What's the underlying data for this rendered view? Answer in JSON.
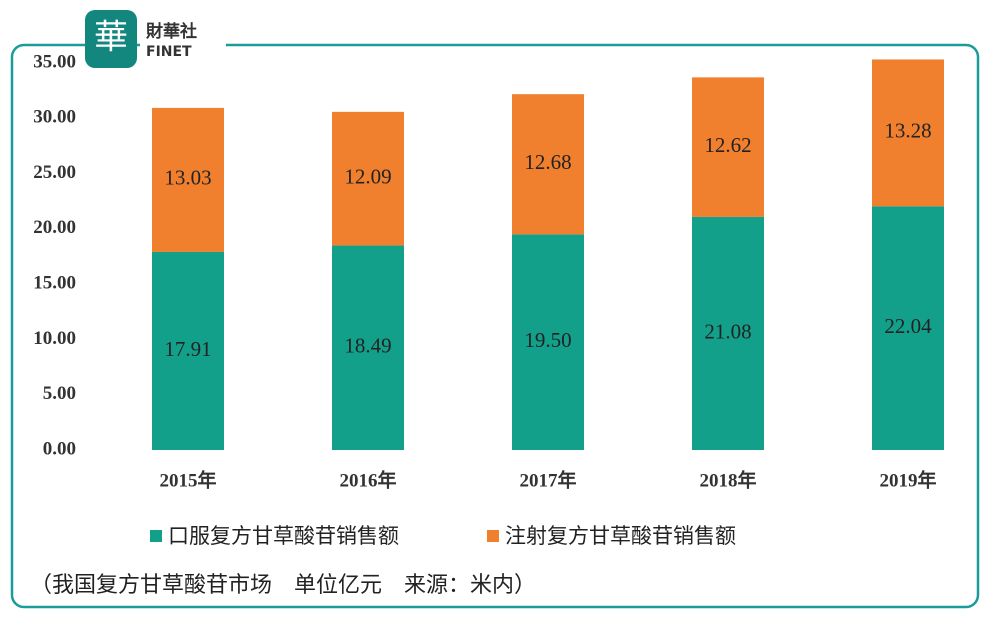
{
  "logo": {
    "name": "財華社",
    "sub": "FINET"
  },
  "chart_data": {
    "type": "stacked-bar",
    "categories": [
      "2015年",
      "2016年",
      "2017年",
      "2018年",
      "2019年"
    ],
    "series": [
      {
        "name": "口服复方甘草酸苷销售额",
        "color": "#12a08b",
        "values": [
          17.91,
          18.49,
          19.5,
          21.08,
          22.04
        ],
        "value_labels": [
          "17.91",
          "18.49",
          "19.50",
          "21.08",
          "22.04"
        ]
      },
      {
        "name": "注射复方甘草酸苷销售额",
        "color": "#f07f2e",
        "values": [
          13.03,
          12.09,
          12.68,
          12.62,
          13.28
        ],
        "value_labels": [
          "13.03",
          "12.09",
          "12.68",
          "12.62",
          "13.28"
        ]
      }
    ],
    "ylim": [
      0,
      35
    ],
    "yticks": [
      {
        "value": 0,
        "label": "0.00"
      },
      {
        "value": 5,
        "label": "5.00"
      },
      {
        "value": 10,
        "label": "10.00"
      },
      {
        "value": 15,
        "label": "15.00"
      },
      {
        "value": 20,
        "label": "20.00"
      },
      {
        "value": 25,
        "label": "25.00"
      },
      {
        "value": 30,
        "label": "30.00"
      },
      {
        "value": 35,
        "label": "35.00"
      }
    ],
    "legend": "bottom",
    "caption": "（我国复方甘草酸苷市场　单位亿元　来源：米内）"
  }
}
